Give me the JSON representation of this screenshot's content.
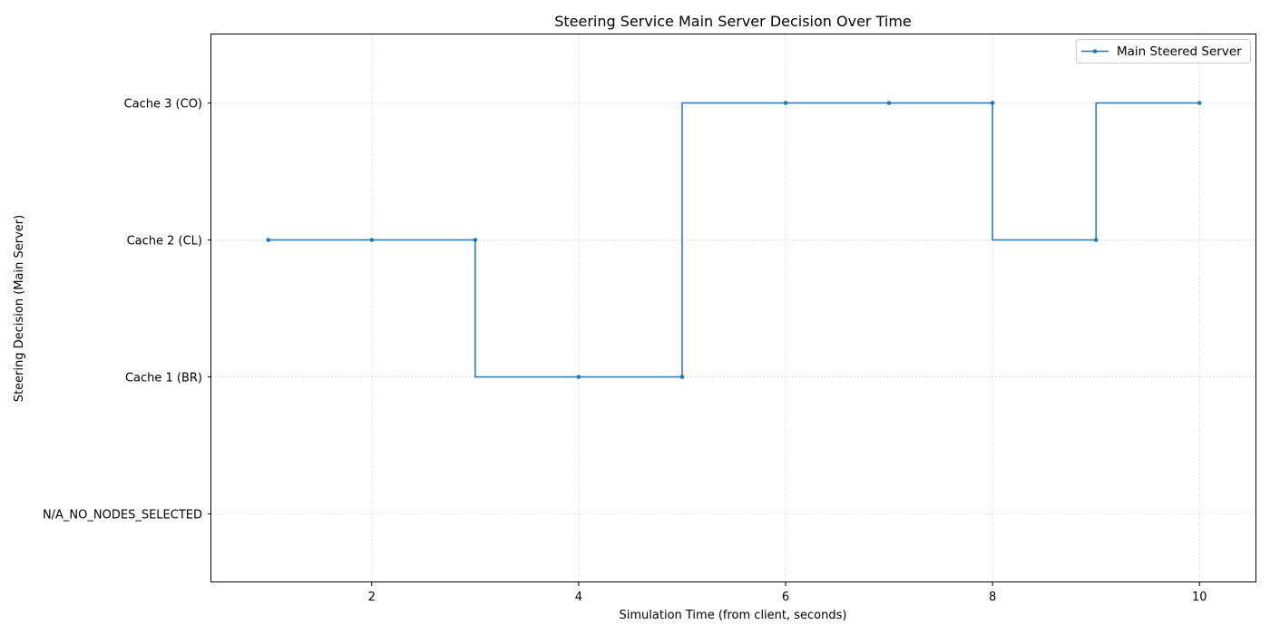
{
  "chart_data": {
    "type": "line",
    "drawstyle": "steps-pre",
    "title": "Steering Service Main Server Decision Over Time",
    "xlabel": "Simulation Time (from client, seconds)",
    "ylabel": "Steering Decision (Main Server)",
    "xlim": [
      0.45,
      10.55
    ],
    "ylim": [
      -0.5,
      3.5
    ],
    "x_ticks": [
      2,
      4,
      6,
      8,
      10
    ],
    "y_categories": [
      "N/A_NO_NODES_SELECTED",
      "Cache 1 (BR)",
      "Cache 2 (CL)",
      "Cache 3 (CO)"
    ],
    "grid": true,
    "legend_position": "top-right",
    "series": [
      {
        "name": "Main Steered Server",
        "color": "#1f77b4",
        "marker": "dot",
        "x": [
          1,
          2,
          3,
          4,
          5,
          6,
          7,
          8,
          9,
          10
        ],
        "y": [
          "Cache 2 (CL)",
          "Cache 2 (CL)",
          "Cache 2 (CL)",
          "Cache 1 (BR)",
          "Cache 1 (BR)",
          "Cache 3 (CO)",
          "Cache 3 (CO)",
          "Cache 3 (CO)",
          "Cache 2 (CL)",
          "Cache 3 (CO)"
        ]
      }
    ]
  }
}
